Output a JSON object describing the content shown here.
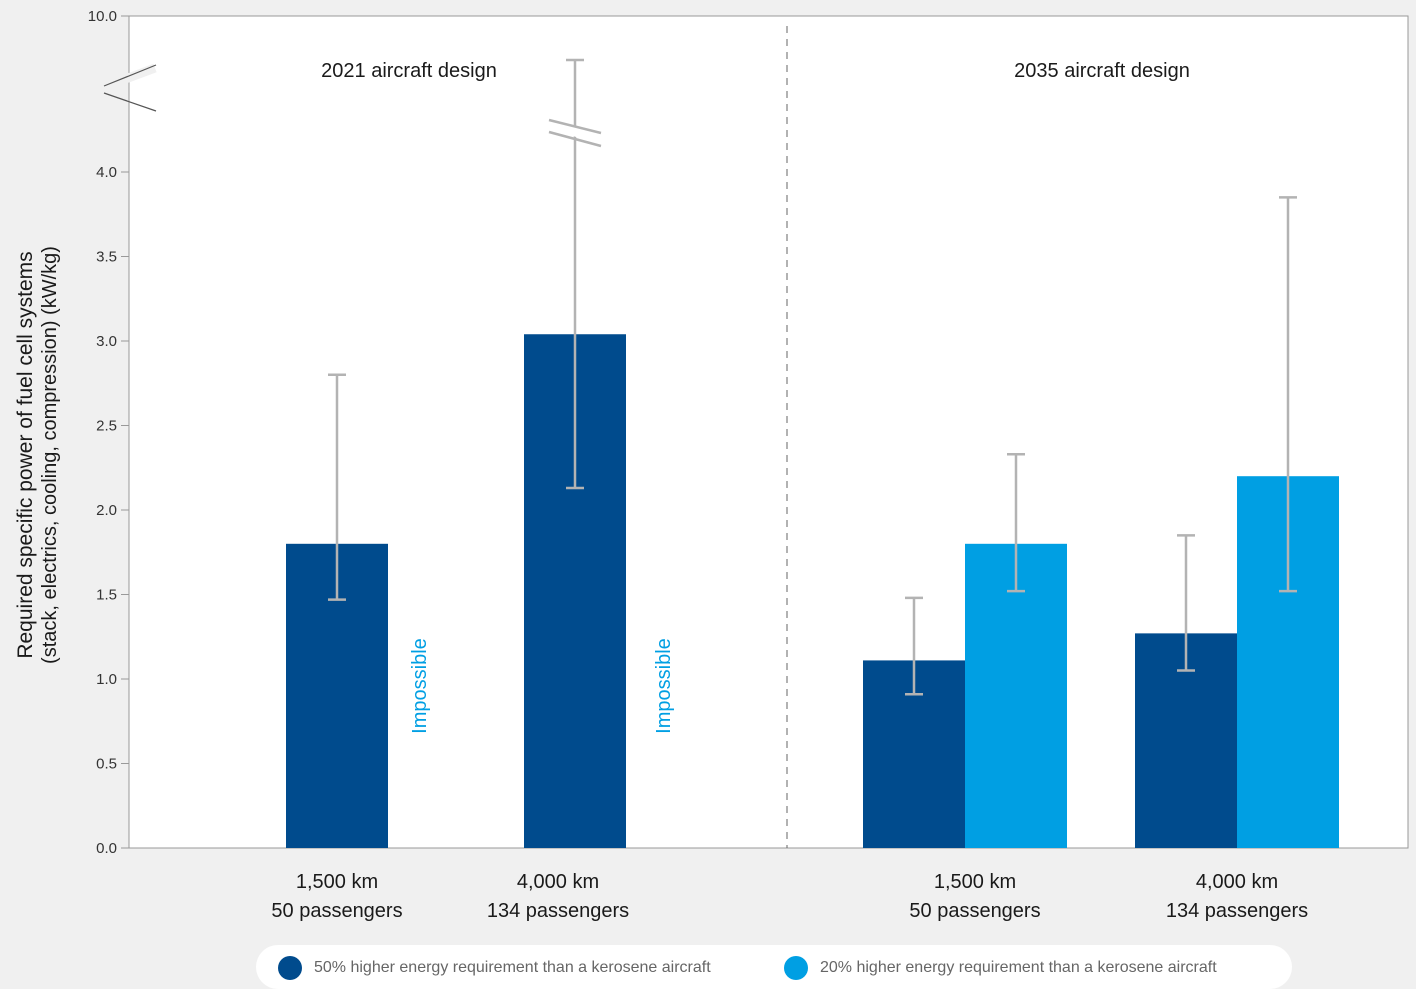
{
  "chart_data": {
    "type": "bar",
    "title": "",
    "ylabel": "Required specific power of fuel cell systems",
    "ylabel_sub": "(stack, electrics, cooling, compression) (kW/kg)",
    "ylim": [
      0,
      10
    ],
    "axis_break": "between 4.0 and 10.0",
    "y_ticks": [
      "0.0",
      "0.5",
      "1.0",
      "1.5",
      "2.0",
      "2.5",
      "3.0",
      "3.5",
      "4.0",
      "10.0"
    ],
    "panels": [
      {
        "title": "2021 aircraft design"
      },
      {
        "title": "2035 aircraft design"
      }
    ],
    "categories": [
      {
        "line1": "1,500 km",
        "line2": "50 passengers",
        "panel": 0
      },
      {
        "line1": "4,000 km",
        "line2": "134 passengers",
        "panel": 0
      },
      {
        "line1": "1,500 km",
        "line2": "50 passengers",
        "panel": 1
      },
      {
        "line1": "4,000 km",
        "line2": "134 passengers",
        "panel": 1
      }
    ],
    "series": [
      {
        "name": "50% higher energy requirement than a kerosene aircraft",
        "color": "#004b8d",
        "values": [
          1.8,
          3.04,
          1.11,
          1.27
        ],
        "error_low": [
          1.47,
          2.13,
          0.91,
          1.05
        ],
        "error_high": [
          2.8,
          10.0,
          1.48,
          1.85
        ]
      },
      {
        "name": "20% higher energy requirement than a kerosene aircraft",
        "color": "#009fe3",
        "values": [
          null,
          null,
          1.8,
          2.2
        ],
        "error_low": [
          null,
          null,
          1.52,
          1.52
        ],
        "error_high": [
          null,
          null,
          2.33,
          3.85
        ]
      }
    ],
    "annotations": [
      {
        "text": "Impossible",
        "category": 0
      },
      {
        "text": "Impossible",
        "category": 1
      }
    ],
    "grid": false,
    "legend_position": "bottom"
  }
}
